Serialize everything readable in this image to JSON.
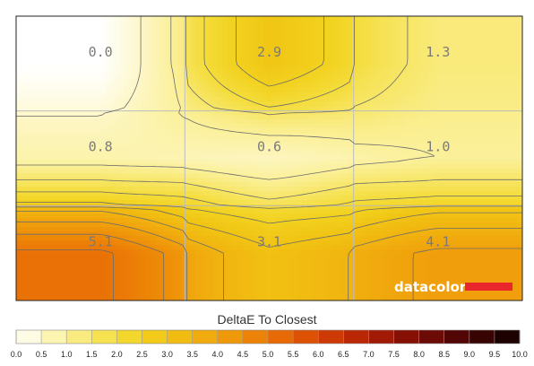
{
  "chart_data": {
    "type": "heatmap",
    "grid_rows": 3,
    "grid_cols": 3,
    "values": [
      [
        0.0,
        2.9,
        1.3
      ],
      [
        0.8,
        0.6,
        1.0
      ],
      [
        5.1,
        3.1,
        4.1
      ]
    ],
    "value_labels": [
      [
        "0.0",
        "2.9",
        "1.3"
      ],
      [
        "0.8",
        "0.6",
        "1.0"
      ],
      [
        "5.1",
        "3.1",
        "4.1"
      ]
    ],
    "colorbar": {
      "title": "DeltaE To Closest",
      "min": 0,
      "max": 10,
      "ticks": [
        "0.0",
        "0.5",
        "1.0",
        "1.5",
        "2.0",
        "2.5",
        "3.0",
        "3.5",
        "4.0",
        "4.5",
        "5.0",
        "5.5",
        "6.0",
        "6.5",
        "7.0",
        "7.5",
        "8.0",
        "8.5",
        "9.0",
        "9.5",
        "10.0"
      ],
      "colors": [
        "#ffffff",
        "#fdf7c8",
        "#fbf09a",
        "#f7e666",
        "#f4dc3a",
        "#f2d11e",
        "#f1c313",
        "#f1b410",
        "#f0a20c",
        "#ee8d08",
        "#ea7606",
        "#e35d05",
        "#d74405",
        "#c52f05",
        "#ae1f05",
        "#941405",
        "#790c05",
        "#5e0705",
        "#440404",
        "#2a0202",
        "#100000"
      ]
    },
    "contour_lines": true,
    "gridlines": true
  },
  "brand": {
    "name": "datacolor",
    "bar_color": "#e8262c"
  }
}
